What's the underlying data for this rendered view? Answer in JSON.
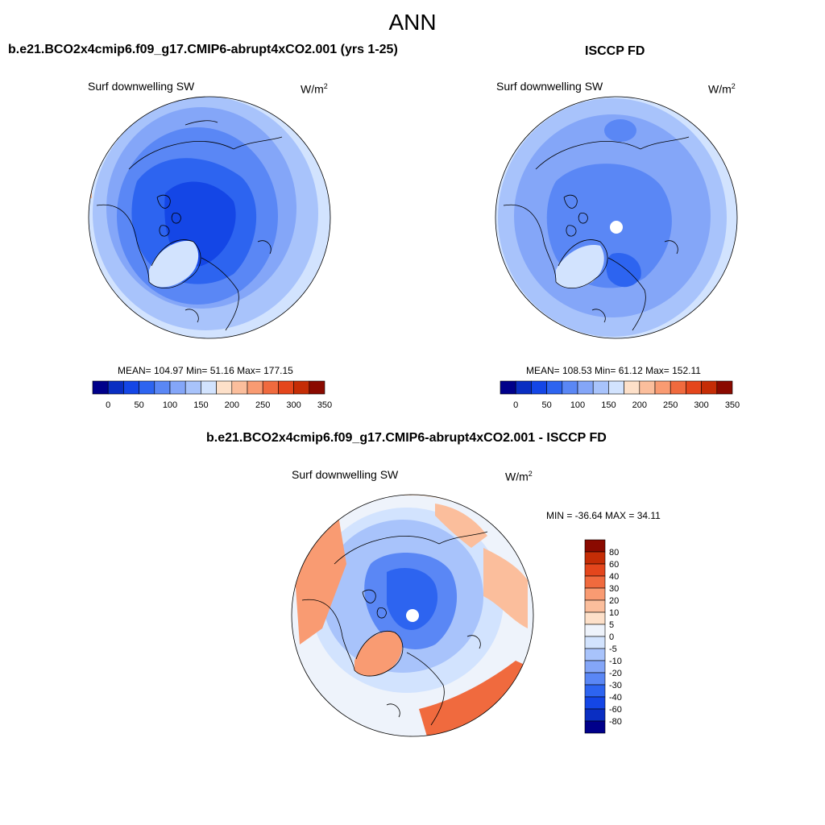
{
  "page": {
    "title": "ANN"
  },
  "colors": {
    "scale_2": [
      "#00008a",
      "#0a2ec2",
      "#1446e6",
      "#2d64f0",
      "#5a87f5",
      "#84a6f8",
      "#a8c3fb",
      "#d2e3fe",
      "#fde0c9",
      "#fbbe9c",
      "#f99b72",
      "#f06a3e",
      "#e4461c",
      "#c52d06",
      "#8a0a00"
    ],
    "scale_diff": [
      "#00008a",
      "#0a2ec2",
      "#1446e6",
      "#2d64f0",
      "#5a87f5",
      "#84a6f8",
      "#a8c3fb",
      "#d2e3fe",
      "#eef3fb",
      "#fde0c9",
      "#fbbe9c",
      "#f99b72",
      "#f06a3e",
      "#e4461c",
      "#c52d06",
      "#8a0a00"
    ]
  },
  "panels": [
    {
      "id": "model",
      "title": "b.e21.BCO2x4cmip6.f09_g17.CMIP6-abrupt4xCO2.001 (yrs 1-25)",
      "left_label": "Surf downwelling SW",
      "units_base": "W/m",
      "units_exp": "2",
      "stats": "MEAN= 104.97  Min=  51.16  Max= 177.15",
      "colorbar_ticks": [
        "0",
        "50",
        "100",
        "150",
        "200",
        "250",
        "300",
        "350"
      ]
    },
    {
      "id": "obs",
      "title": "ISCCP FD",
      "left_label": "Surf downwelling SW",
      "units_base": "W/m",
      "units_exp": "2",
      "stats": "MEAN= 108.53  Min=  61.12  Max= 152.11",
      "colorbar_ticks": [
        "0",
        "50",
        "100",
        "150",
        "200",
        "250",
        "300",
        "350"
      ]
    },
    {
      "id": "diff",
      "title": "b.e21.BCO2x4cmip6.f09_g17.CMIP6-abrupt4xCO2.001 - ISCCP FD",
      "left_label": "Surf downwelling SW",
      "units_base": "W/m",
      "units_exp": "2",
      "stats": "MIN = -36.64 MAX =  34.11",
      "colorbar_ticks": [
        "80",
        "60",
        "40",
        "30",
        "20",
        "10",
        "5",
        "0",
        "-5",
        "-10",
        "-20",
        "-30",
        "-40",
        "-60",
        "-80"
      ]
    }
  ]
}
